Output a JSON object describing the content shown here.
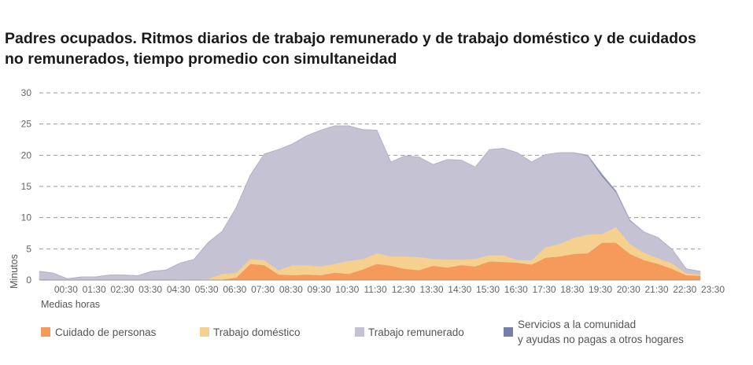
{
  "title_line1": "Padres ocupados. Ritmos diarios de trabajo remunerado y de trabajo doméstico y de cuidados",
  "title_line2": "no remunerados, tiempo promedio con simultaneidad",
  "chart_data": {
    "type": "area",
    "stacked": true,
    "title": "Padres ocupados. Ritmos diarios de trabajo remunerado y de trabajo doméstico y de cuidados no remunerados, tiempo promedio con simultaneidad",
    "ylabel": "Minutos",
    "xlabel": "Medias horas",
    "ylim": [
      0,
      30
    ],
    "yticks": [
      0,
      5,
      10,
      15,
      20,
      25,
      30
    ],
    "grid": true,
    "legend_position": "bottom",
    "x": [
      "00:00",
      "00:30",
      "01:00",
      "01:30",
      "02:00",
      "02:30",
      "03:00",
      "03:30",
      "04:00",
      "04:30",
      "05:00",
      "05:30",
      "06:00",
      "06:30",
      "07:00",
      "07:30",
      "08:00",
      "08:30",
      "09:00",
      "09:30",
      "10:00",
      "10:30",
      "11:00",
      "11:30",
      "12:00",
      "12:30",
      "13:00",
      "13:30",
      "14:00",
      "14:30",
      "15:00",
      "15:30",
      "16:00",
      "16:30",
      "17:00",
      "17:30",
      "18:00",
      "18:30",
      "19:00",
      "19:30",
      "20:00",
      "20:30",
      "21:00",
      "21:30",
      "22:00",
      "22:30",
      "23:00",
      "23:30"
    ],
    "x_tick_labels": [
      "00:30",
      "01:30",
      "02:30",
      "03:30",
      "04:30",
      "05:30",
      "06:30",
      "07:30",
      "08:30",
      "09:30",
      "10:30",
      "11:30",
      "12:30",
      "13:30",
      "14:30",
      "15:30",
      "16:30",
      "17:30",
      "18:30",
      "19:30",
      "20:30",
      "21:30",
      "22:30",
      "23:30"
    ],
    "series": [
      {
        "name": "Cuidado de personas",
        "color": "#f59a5b",
        "values": [
          0.2,
          0.1,
          0,
          0.1,
          0.1,
          0.1,
          0.1,
          0.1,
          0.1,
          0.1,
          0.1,
          0.1,
          0.1,
          0.1,
          0.4,
          2.6,
          2.4,
          0.9,
          0.8,
          0.9,
          0.8,
          1.2,
          1.0,
          1.7,
          2.6,
          2.3,
          1.8,
          1.6,
          2.3,
          2.0,
          2.4,
          2.2,
          3.0,
          2.9,
          2.8,
          2.5,
          3.6,
          3.8,
          4.2,
          4.3,
          6.0,
          6.0,
          4.2,
          3.2,
          2.6,
          1.8,
          0.8,
          0.7
        ]
      },
      {
        "name": "Trabajo doméstico",
        "color": "#f5d08e",
        "values": [
          0,
          0,
          0,
          0,
          0,
          0,
          0,
          0,
          0,
          0,
          0.1,
          0,
          0.1,
          0.9,
          0.8,
          0.8,
          0.8,
          0.7,
          1.6,
          1.5,
          1.4,
          1.4,
          2.1,
          1.7,
          1.7,
          1.5,
          2.0,
          2.1,
          1.1,
          1.3,
          0.9,
          1.2,
          1.0,
          1.1,
          0.4,
          0.7,
          1.7,
          2.0,
          2.6,
          3.0,
          1.4,
          2.5,
          1.6,
          1.2,
          0.9,
          0.9,
          0.3,
          0.2
        ]
      },
      {
        "name": "Trabajo remunerado",
        "color": "#c5c3d3",
        "values": [
          1.2,
          1.0,
          0.2,
          0.4,
          0.4,
          0.7,
          0.7,
          0.6,
          1.3,
          1.5,
          2.5,
          3.2,
          5.8,
          6.8,
          10.4,
          13.4,
          17.0,
          19.3,
          19.4,
          20.7,
          21.8,
          22.1,
          21.6,
          20.7,
          19.7,
          15.1,
          16.1,
          16.0,
          15.1,
          16.0,
          15.9,
          14.7,
          16.9,
          17.1,
          17.2,
          15.7,
          14.8,
          14.6,
          13.6,
          12.6,
          9.3,
          5.6,
          3.7,
          3.3,
          3.3,
          2.2,
          0.7,
          0.5
        ]
      },
      {
        "name": "Servicios a la comunidad y ayudas no pagas a otros hogares",
        "color": "#7480a8",
        "values": [
          0,
          0,
          0,
          0,
          0,
          0,
          0,
          0,
          0,
          0,
          0,
          0,
          0,
          0,
          0,
          0,
          0,
          0,
          0,
          0,
          0,
          0,
          0,
          0,
          0,
          0,
          0,
          0,
          0,
          0,
          0,
          0,
          0,
          0,
          0,
          0,
          0,
          0,
          0,
          0.1,
          0.3,
          0.2,
          0.1,
          0,
          0,
          0,
          0,
          0
        ]
      }
    ]
  },
  "legend": {
    "item1": "Cuidado de personas",
    "item2": "Trabajo doméstico",
    "item3": "Trabajo remunerado",
    "item4_line1": "Servicios a la comunidad",
    "item4_line2": "y ayudas no pagas a otros hogares"
  }
}
